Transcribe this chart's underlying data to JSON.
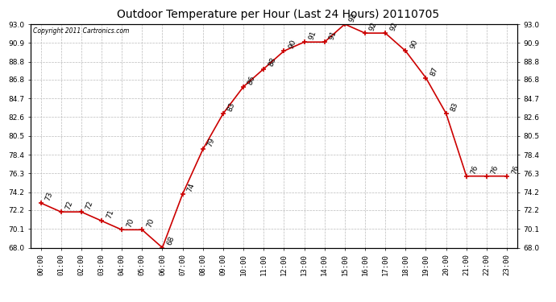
{
  "title": "Outdoor Temperature per Hour (Last 24 Hours) 20110705",
  "copyright_text": "Copyright 2011 Cartronics.com",
  "hours": [
    "00:00",
    "01:00",
    "02:00",
    "03:00",
    "04:00",
    "05:00",
    "06:00",
    "07:00",
    "08:00",
    "09:00",
    "10:00",
    "11:00",
    "12:00",
    "13:00",
    "14:00",
    "15:00",
    "16:00",
    "17:00",
    "18:00",
    "19:00",
    "20:00",
    "21:00",
    "22:00",
    "23:00"
  ],
  "temperatures": [
    73,
    72,
    72,
    71,
    70,
    70,
    68,
    74,
    79,
    83,
    86,
    88,
    90,
    91,
    91,
    93,
    92,
    92,
    90,
    87,
    83,
    76,
    76,
    76
  ],
  "line_color": "#cc0000",
  "marker_color": "#cc0000",
  "bg_color": "#ffffff",
  "plot_bg_color": "#ffffff",
  "grid_color": "#bbbbbb",
  "title_fontsize": 10,
  "tick_fontsize": 6.5,
  "label_fontsize": 6.5,
  "ylim_min": 68.0,
  "ylim_max": 93.0,
  "ytick_values": [
    68.0,
    70.1,
    72.2,
    74.2,
    76.3,
    78.4,
    80.5,
    82.6,
    84.7,
    86.8,
    88.8,
    90.9,
    93.0
  ]
}
